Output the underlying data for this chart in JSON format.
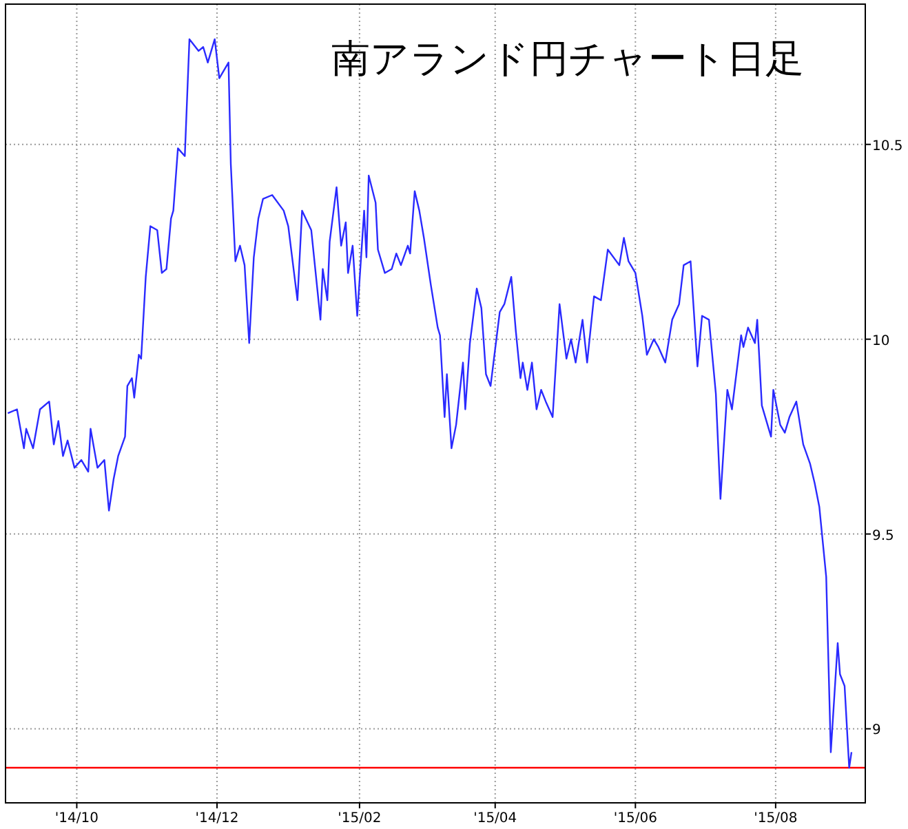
{
  "chart_data": {
    "type": "line",
    "title": "南アランド円チャート日足",
    "xlim": [
      "2014-08-31",
      "2015-09-09"
    ],
    "ylim": [
      8.81,
      10.86
    ],
    "xticks": [
      {
        "value": "2014-10-01",
        "label": "'14/10"
      },
      {
        "value": "2014-12-01",
        "label": "'14/12"
      },
      {
        "value": "2015-02-01",
        "label": "'15/02"
      },
      {
        "value": "2015-04-01",
        "label": "'15/04"
      },
      {
        "value": "2015-06-01",
        "label": "'15/06"
      },
      {
        "value": "2015-08-01",
        "label": "'15/08"
      }
    ],
    "yticks": [
      9,
      9.5,
      10,
      10.5
    ],
    "grid": true,
    "ref_lines": [
      {
        "axis": "y",
        "value": 8.9,
        "color": "#ff0000"
      }
    ],
    "series": [
      {
        "color": "#2a2aff",
        "x": [
          "2014-09-01",
          "2014-09-05",
          "2014-09-08",
          "2014-09-09",
          "2014-09-12",
          "2014-09-15",
          "2014-09-19",
          "2014-09-21",
          "2014-09-23",
          "2014-09-25",
          "2014-09-27",
          "2014-09-30",
          "2014-10-03",
          "2014-10-06",
          "2014-10-07",
          "2014-10-10",
          "2014-10-13",
          "2014-10-15",
          "2014-10-17",
          "2014-10-19",
          "2014-10-22",
          "2014-10-23",
          "2014-10-25",
          "2014-10-26",
          "2014-10-28",
          "2014-10-29",
          "2014-10-31",
          "2014-11-02",
          "2014-11-05",
          "2014-11-07",
          "2014-11-09",
          "2014-11-11",
          "2014-11-12",
          "2014-11-14",
          "2014-11-17",
          "2014-11-19",
          "2014-11-23",
          "2014-11-25",
          "2014-11-27",
          "2014-11-30",
          "2014-12-02",
          "2014-12-06",
          "2014-12-07",
          "2014-12-09",
          "2014-12-11",
          "2014-12-13",
          "2014-12-15",
          "2014-12-17",
          "2014-12-19",
          "2014-12-21",
          "2014-12-25",
          "2014-12-30",
          "2015-01-01",
          "2015-01-05",
          "2015-01-07",
          "2015-01-11",
          "2015-01-15",
          "2015-01-16",
          "2015-01-18",
          "2015-01-19",
          "2015-01-22",
          "2015-01-24",
          "2015-01-26",
          "2015-01-27",
          "2015-01-29",
          "2015-01-31",
          "2015-02-03",
          "2015-02-04",
          "2015-02-05",
          "2015-02-08",
          "2015-02-09",
          "2015-02-12",
          "2015-02-15",
          "2015-02-17",
          "2015-02-19",
          "2015-02-22",
          "2015-02-23",
          "2015-02-25",
          "2015-02-27",
          "2015-03-01",
          "2015-03-04",
          "2015-03-07",
          "2015-03-08",
          "2015-03-10",
          "2015-03-11",
          "2015-03-13",
          "2015-03-15",
          "2015-03-18",
          "2015-03-19",
          "2015-03-21",
          "2015-03-24",
          "2015-03-26",
          "2015-03-28",
          "2015-03-30",
          "2015-04-03",
          "2015-04-05",
          "2015-04-08",
          "2015-04-10",
          "2015-04-12",
          "2015-04-13",
          "2015-04-15",
          "2015-04-17",
          "2015-04-19",
          "2015-04-21",
          "2015-04-23",
          "2015-04-26",
          "2015-04-29",
          "2015-05-02",
          "2015-05-04",
          "2015-05-06",
          "2015-05-09",
          "2015-05-11",
          "2015-05-14",
          "2015-05-17",
          "2015-05-20",
          "2015-05-25",
          "2015-05-27",
          "2015-05-29",
          "2015-06-01",
          "2015-06-04",
          "2015-06-06",
          "2015-06-09",
          "2015-06-11",
          "2015-06-14",
          "2015-06-17",
          "2015-06-20",
          "2015-06-22",
          "2015-06-25",
          "2015-06-28",
          "2015-06-30",
          "2015-07-03",
          "2015-07-06",
          "2015-07-08",
          "2015-07-11",
          "2015-07-13",
          "2015-07-17",
          "2015-07-18",
          "2015-07-20",
          "2015-07-23",
          "2015-07-24",
          "2015-07-26",
          "2015-07-30",
          "2015-07-31",
          "2015-08-03",
          "2015-08-05",
          "2015-08-07",
          "2015-08-10",
          "2015-08-13",
          "2015-08-16",
          "2015-08-18",
          "2015-08-20",
          "2015-08-23",
          "2015-08-25",
          "2015-08-28",
          "2015-08-29",
          "2015-08-31",
          "2015-09-02",
          "2015-09-03"
        ],
        "values": [
          9.81,
          9.82,
          9.72,
          9.77,
          9.72,
          9.82,
          9.84,
          9.73,
          9.79,
          9.7,
          9.74,
          9.67,
          9.69,
          9.66,
          9.77,
          9.67,
          9.69,
          9.56,
          9.64,
          9.7,
          9.75,
          9.88,
          9.9,
          9.85,
          9.96,
          9.95,
          10.16,
          10.29,
          10.28,
          10.17,
          10.18,
          10.31,
          10.33,
          10.49,
          10.47,
          10.77,
          10.74,
          10.75,
          10.71,
          10.77,
          10.67,
          10.71,
          10.45,
          10.2,
          10.24,
          10.19,
          9.99,
          10.21,
          10.31,
          10.36,
          10.37,
          10.33,
          10.29,
          10.1,
          10.33,
          10.28,
          10.05,
          10.18,
          10.1,
          10.25,
          10.39,
          10.24,
          10.3,
          10.17,
          10.24,
          10.06,
          10.33,
          10.21,
          10.42,
          10.35,
          10.23,
          10.17,
          10.18,
          10.22,
          10.19,
          10.24,
          10.22,
          10.38,
          10.33,
          10.26,
          10.14,
          10.03,
          10.01,
          9.8,
          9.91,
          9.72,
          9.78,
          9.94,
          9.82,
          9.99,
          10.13,
          10.08,
          9.91,
          9.88,
          10.07,
          10.09,
          10.16,
          10.02,
          9.9,
          9.94,
          9.87,
          9.94,
          9.82,
          9.87,
          9.84,
          9.8,
          10.09,
          9.95,
          10.0,
          9.94,
          10.05,
          9.94,
          10.11,
          10.1,
          10.23,
          10.19,
          10.26,
          10.2,
          10.17,
          10.06,
          9.96,
          10.0,
          9.98,
          9.94,
          10.05,
          10.09,
          10.19,
          10.2,
          9.93,
          10.06,
          10.05,
          9.86,
          9.59,
          9.87,
          9.82,
          10.01,
          9.98,
          10.03,
          9.99,
          10.05,
          9.83,
          9.75,
          9.87,
          9.78,
          9.76,
          9.8,
          9.84,
          9.73,
          9.68,
          9.63,
          9.57,
          9.39,
          8.94,
          9.22,
          9.14,
          9.11,
          8.9,
          8.94
        ]
      }
    ]
  }
}
